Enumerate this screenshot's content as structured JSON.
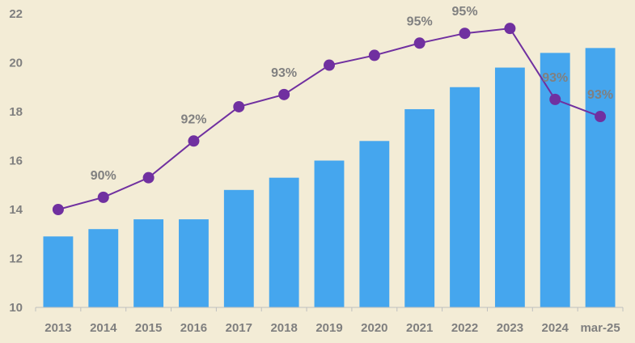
{
  "chart_data": {
    "type": "bar",
    "categories": [
      "2013",
      "2014",
      "2015",
      "2016",
      "2017",
      "2018",
      "2019",
      "2020",
      "2021",
      "2022",
      "2023",
      "2024",
      "mar-25"
    ],
    "ylim": [
      10,
      22
    ],
    "yticks": [
      10,
      12,
      14,
      16,
      18,
      20,
      22
    ],
    "grid": false,
    "colors": {
      "bar": "#45a6ee",
      "line": "#7030a0",
      "axis": "#bfbfbf",
      "label": "#808080"
    },
    "series": [
      {
        "type": "bar",
        "values": [
          12.9,
          13.2,
          13.6,
          13.6,
          14.8,
          15.3,
          16.0,
          16.8,
          18.1,
          19.0,
          19.8,
          20.4,
          20.6
        ]
      },
      {
        "type": "line",
        "values": [
          14.0,
          14.5,
          15.3,
          16.8,
          18.2,
          18.7,
          19.9,
          20.3,
          20.8,
          21.2,
          21.4,
          18.5,
          17.8
        ]
      }
    ],
    "data_labels": [
      {
        "category": "2014",
        "text": "90%"
      },
      {
        "category": "2016",
        "text": "92%"
      },
      {
        "category": "2018",
        "text": "93%"
      },
      {
        "category": "2021",
        "text": "95%"
      },
      {
        "category": "2022",
        "text": "95%"
      },
      {
        "category": "2024",
        "text": "93%"
      },
      {
        "category": "mar-25",
        "text": "93%"
      }
    ]
  }
}
